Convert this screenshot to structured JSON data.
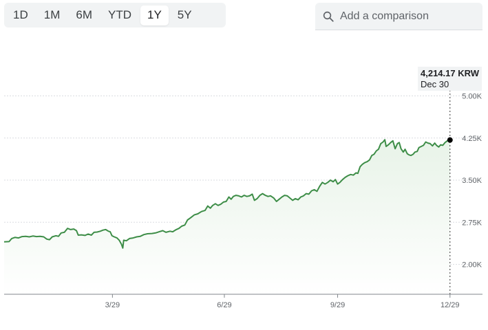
{
  "range_selector": {
    "options": [
      "1D",
      "1M",
      "6M",
      "YTD",
      "1Y",
      "5Y"
    ],
    "selected": "1Y"
  },
  "comparison": {
    "placeholder": "Add a comparison"
  },
  "tooltip": {
    "price": "4,214.17 KRW",
    "date": "Dec 30"
  },
  "colors": {
    "line": "#3d8d47",
    "area_top": "#e8f3e8",
    "grid": "#dadce0",
    "axis_text": "#5f6368",
    "marker": "#000000"
  },
  "chart_data": {
    "type": "line",
    "title": "",
    "xlabel": "",
    "ylabel": "",
    "x_ticks": [
      {
        "label": "3/29",
        "t": 0.241
      },
      {
        "label": "6/29",
        "t": 0.49
      },
      {
        "label": "9/29",
        "t": 0.742
      },
      {
        "label": "12/29",
        "t": 0.992
      }
    ],
    "y_ticks": [
      {
        "label": "2.00K",
        "value": 2000
      },
      {
        "label": "2.75K",
        "value": 2750
      },
      {
        "label": "3.50K",
        "value": 3500
      },
      {
        "label": "4.25K",
        "value": 4250
      },
      {
        "label": "5.00K",
        "value": 5000
      }
    ],
    "ylim": [
      1500,
      5200
    ],
    "grid": true,
    "series": [
      {
        "points": [
          [
            0.0,
            2400
          ],
          [
            0.011,
            2405
          ],
          [
            0.017,
            2460
          ],
          [
            0.024,
            2480
          ],
          [
            0.032,
            2470
          ],
          [
            0.04,
            2495
          ],
          [
            0.048,
            2500
          ],
          [
            0.056,
            2490
          ],
          [
            0.064,
            2505
          ],
          [
            0.072,
            2495
          ],
          [
            0.08,
            2500
          ],
          [
            0.088,
            2490
          ],
          [
            0.095,
            2450
          ],
          [
            0.101,
            2440
          ],
          [
            0.107,
            2490
          ],
          [
            0.115,
            2510
          ],
          [
            0.121,
            2500
          ],
          [
            0.127,
            2560
          ],
          [
            0.134,
            2570
          ],
          [
            0.141,
            2640
          ],
          [
            0.148,
            2620
          ],
          [
            0.155,
            2630
          ],
          [
            0.161,
            2600
          ],
          [
            0.165,
            2520
          ],
          [
            0.172,
            2525
          ],
          [
            0.18,
            2515
          ],
          [
            0.187,
            2540
          ],
          [
            0.194,
            2520
          ],
          [
            0.2,
            2570
          ],
          [
            0.207,
            2575
          ],
          [
            0.214,
            2590
          ],
          [
            0.22,
            2610
          ],
          [
            0.226,
            2620
          ],
          [
            0.232,
            2590
          ],
          [
            0.236,
            2580
          ],
          [
            0.24,
            2510
          ],
          [
            0.245,
            2490
          ],
          [
            0.251,
            2470
          ],
          [
            0.256,
            2430
          ],
          [
            0.261,
            2360
          ],
          [
            0.264,
            2290
          ],
          [
            0.266,
            2430
          ],
          [
            0.272,
            2420
          ],
          [
            0.279,
            2460
          ],
          [
            0.287,
            2470
          ],
          [
            0.295,
            2490
          ],
          [
            0.303,
            2500
          ],
          [
            0.311,
            2530
          ],
          [
            0.319,
            2545
          ],
          [
            0.329,
            2550
          ],
          [
            0.337,
            2560
          ],
          [
            0.345,
            2580
          ],
          [
            0.353,
            2600
          ],
          [
            0.36,
            2570
          ],
          [
            0.369,
            2590
          ],
          [
            0.375,
            2580
          ],
          [
            0.383,
            2620
          ],
          [
            0.389,
            2640
          ],
          [
            0.395,
            2680
          ],
          [
            0.402,
            2700
          ],
          [
            0.408,
            2790
          ],
          [
            0.415,
            2830
          ],
          [
            0.423,
            2880
          ],
          [
            0.431,
            2900
          ],
          [
            0.439,
            2940
          ],
          [
            0.447,
            2960
          ],
          [
            0.453,
            3040
          ],
          [
            0.459,
            3000
          ],
          [
            0.464,
            3050
          ],
          [
            0.47,
            3080
          ],
          [
            0.476,
            3050
          ],
          [
            0.482,
            3070
          ],
          [
            0.488,
            3110
          ],
          [
            0.494,
            3120
          ],
          [
            0.5,
            3200
          ],
          [
            0.505,
            3160
          ],
          [
            0.51,
            3210
          ],
          [
            0.516,
            3230
          ],
          [
            0.522,
            3220
          ],
          [
            0.528,
            3200
          ],
          [
            0.534,
            3230
          ],
          [
            0.54,
            3210
          ],
          [
            0.546,
            3220
          ],
          [
            0.552,
            3250
          ],
          [
            0.557,
            3140
          ],
          [
            0.563,
            3170
          ],
          [
            0.569,
            3230
          ],
          [
            0.575,
            3260
          ],
          [
            0.581,
            3230
          ],
          [
            0.587,
            3210
          ],
          [
            0.593,
            3220
          ],
          [
            0.6,
            3180
          ],
          [
            0.606,
            3120
          ],
          [
            0.612,
            3160
          ],
          [
            0.618,
            3200
          ],
          [
            0.624,
            3230
          ],
          [
            0.63,
            3220
          ],
          [
            0.636,
            3180
          ],
          [
            0.642,
            3140
          ],
          [
            0.648,
            3170
          ],
          [
            0.654,
            3150
          ],
          [
            0.66,
            3200
          ],
          [
            0.666,
            3220
          ],
          [
            0.672,
            3260
          ],
          [
            0.678,
            3250
          ],
          [
            0.684,
            3310
          ],
          [
            0.69,
            3330
          ],
          [
            0.696,
            3300
          ],
          [
            0.702,
            3390
          ],
          [
            0.708,
            3460
          ],
          [
            0.714,
            3430
          ],
          [
            0.72,
            3460
          ],
          [
            0.726,
            3500
          ],
          [
            0.732,
            3470
          ],
          [
            0.737,
            3510
          ],
          [
            0.742,
            3430
          ],
          [
            0.747,
            3460
          ],
          [
            0.753,
            3510
          ],
          [
            0.759,
            3550
          ],
          [
            0.765,
            3580
          ],
          [
            0.771,
            3600
          ],
          [
            0.777,
            3590
          ],
          [
            0.783,
            3630
          ],
          [
            0.787,
            3620
          ],
          [
            0.792,
            3740
          ],
          [
            0.797,
            3780
          ],
          [
            0.802,
            3810
          ],
          [
            0.808,
            3830
          ],
          [
            0.813,
            3860
          ],
          [
            0.818,
            3940
          ],
          [
            0.823,
            3960
          ],
          [
            0.828,
            4020
          ],
          [
            0.833,
            4050
          ],
          [
            0.838,
            4150
          ],
          [
            0.843,
            4180
          ],
          [
            0.847,
            4220
          ],
          [
            0.85,
            4100
          ],
          [
            0.855,
            4130
          ],
          [
            0.86,
            4170
          ],
          [
            0.865,
            4200
          ],
          [
            0.87,
            4060
          ],
          [
            0.875,
            4150
          ],
          [
            0.879,
            4170
          ],
          [
            0.883,
            4060
          ],
          [
            0.888,
            4000
          ],
          [
            0.892,
            4050
          ],
          [
            0.897,
            3970
          ],
          [
            0.901,
            3950
          ],
          [
            0.905,
            3940
          ],
          [
            0.91,
            3960
          ],
          [
            0.914,
            4000
          ],
          [
            0.919,
            4010
          ],
          [
            0.923,
            4080
          ],
          [
            0.928,
            4100
          ],
          [
            0.933,
            4120
          ],
          [
            0.938,
            4180
          ],
          [
            0.943,
            4160
          ],
          [
            0.948,
            4150
          ],
          [
            0.953,
            4110
          ],
          [
            0.958,
            4160
          ],
          [
            0.962,
            4120
          ],
          [
            0.967,
            4090
          ],
          [
            0.971,
            4130
          ],
          [
            0.976,
            4120
          ],
          [
            0.981,
            4170
          ],
          [
            0.986,
            4200
          ],
          [
            0.992,
            4214.17
          ]
        ]
      }
    ]
  }
}
